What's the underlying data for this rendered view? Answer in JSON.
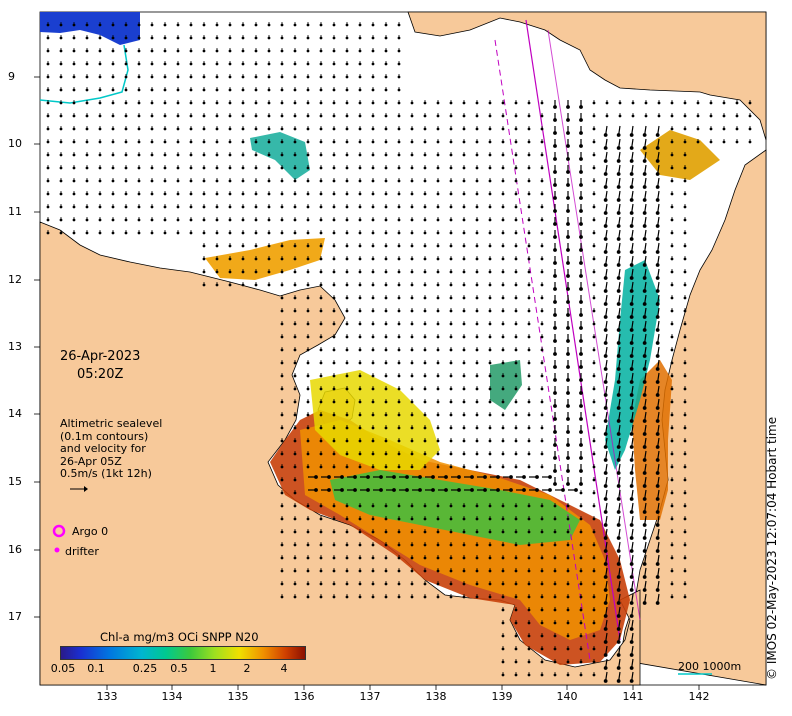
{
  "map": {
    "date": "26-Apr-2023",
    "time": "05:20Z",
    "description_lines": [
      "Altimetric sealevel",
      "(0.1m contours)",
      "and velocity for",
      "26-Apr 05Z",
      "0.5m/s (1kt 12h)"
    ],
    "credit": "© IMOS 02-May-2023 12:07:04 Hobart time",
    "lat_ticks": [
      "9",
      "10",
      "11",
      "12",
      "13",
      "14",
      "15",
      "16",
      "17"
    ],
    "lon_ticks": [
      "133",
      "134",
      "135",
      "136",
      "137",
      "138",
      "139",
      "140",
      "141",
      "142"
    ],
    "colorbar": {
      "title": "Chl-a mg/m3 OCi SNPP N20",
      "ticks": [
        "0.05",
        "0.1",
        "0.25",
        "0.5",
        "1",
        "2",
        "4"
      ]
    },
    "legend": {
      "argo_label": "Argo 0",
      "drifter_label": "drifter"
    },
    "scale": "200  1000m",
    "colors": {
      "land": "#f7c99a",
      "sea": "#ffffff",
      "argo": "#ff00ff",
      "track": "#c000c0",
      "bathy": "#00c8c8"
    }
  }
}
